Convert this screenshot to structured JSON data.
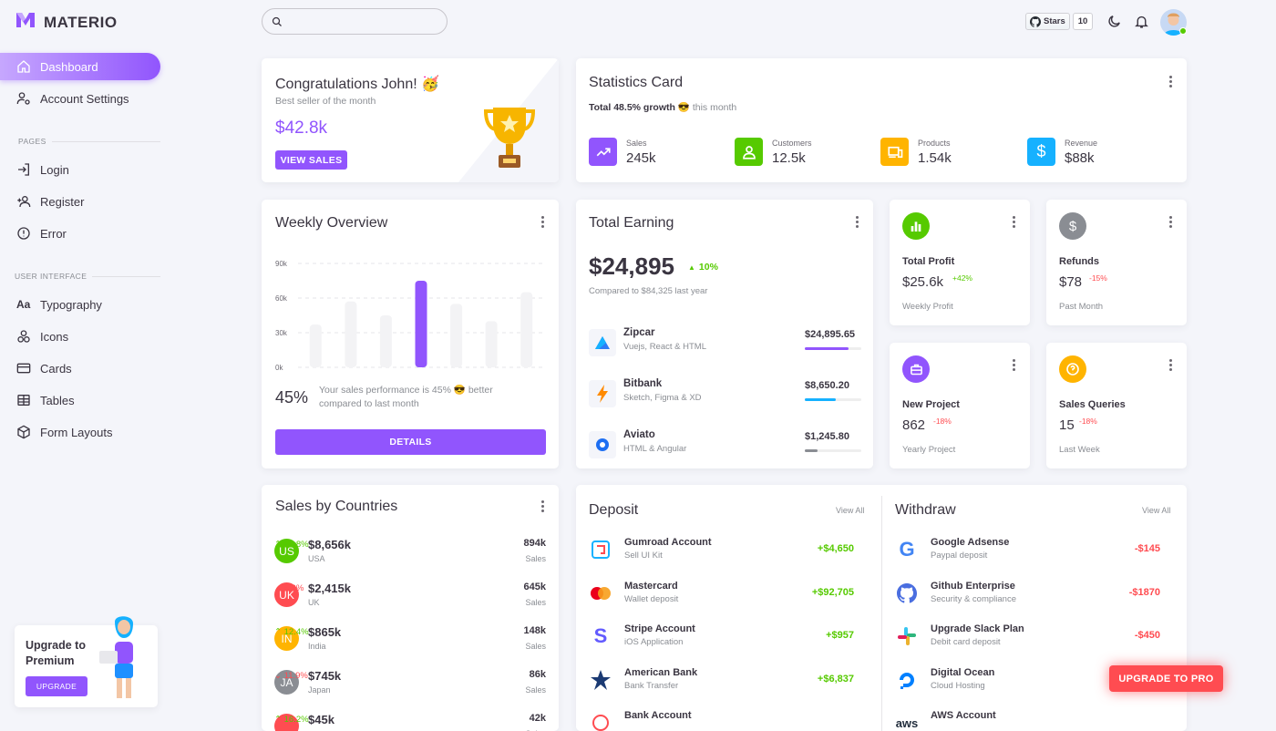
{
  "brand": {
    "name": "MATERIO"
  },
  "nav": {
    "dashboard": "Dashboard",
    "account_settings": "Account Settings",
    "pages_header": "PAGES",
    "login": "Login",
    "register": "Register",
    "error": "Error",
    "ui_header": "USER INTERFACE",
    "typography": "Typography",
    "icons": "Icons",
    "cards": "Cards",
    "tables": "Tables",
    "form_layouts": "Form Layouts"
  },
  "upgrade": {
    "title": "Upgrade to Premium",
    "button": "UPGRADE"
  },
  "topbar": {
    "search_placeholder": "",
    "stars_label": "Stars",
    "stars_count": "10"
  },
  "congrats": {
    "title": "Congratulations John! 🥳",
    "subtitle": "Best seller of the month",
    "amount": "$42.8k",
    "button": "VIEW SALES"
  },
  "stats": {
    "title": "Statistics Card",
    "growth_bold": "Total 48.5% growth",
    "growth_rest": "😎 this month",
    "items": [
      {
        "label": "Sales",
        "value": "245k",
        "color": "#9155fd",
        "icon": "trending-up-icon"
      },
      {
        "label": "Customers",
        "value": "12.5k",
        "color": "#56ca00",
        "icon": "user-icon"
      },
      {
        "label": "Products",
        "value": "1.54k",
        "color": "#ffb400",
        "icon": "devices-icon"
      },
      {
        "label": "Revenue",
        "value": "$88k",
        "color": "#16b1ff",
        "icon": "dollar-icon"
      }
    ]
  },
  "weekly": {
    "title": "Weekly Overview",
    "y_ticks": [
      "90k",
      "60k",
      "30k",
      "0k"
    ],
    "percent": "45%",
    "note": "Your sales performance is 45% 😎 better compared to last month",
    "button": "DETAILS",
    "chart_data": {
      "type": "bar",
      "values": [
        37,
        57,
        45,
        75,
        55,
        40,
        65
      ],
      "ylim": [
        0,
        90
      ],
      "highlight_index": 3
    }
  },
  "earning": {
    "title": "Total Earning",
    "amount": "$24,895",
    "change": "10%",
    "compare": "Compared to $84,325 last year",
    "items": [
      {
        "name": "Zipcar",
        "sub": "Vuejs, React & HTML",
        "amount": "$24,895.65",
        "progress": 0.78,
        "color": "#9155fd"
      },
      {
        "name": "Bitbank",
        "sub": "Sketch, Figma & XD",
        "amount": "$8,650.20",
        "progress": 0.55,
        "color": "#16b1ff"
      },
      {
        "name": "Aviato",
        "sub": "HTML & Angular",
        "amount": "$1,245.80",
        "progress": 0.22,
        "color": "#8a8d93"
      }
    ]
  },
  "mini": [
    {
      "title": "Total Profit",
      "value": "$25.6k",
      "change": "+42%",
      "sub": "Weekly Profit",
      "color": "#56ca00",
      "change_color": "#56ca00",
      "icon": "chart-bar-icon"
    },
    {
      "title": "Refunds",
      "value": "$78",
      "change": "-15%",
      "sub": "Past Month",
      "color": "#8a8d93",
      "change_color": "#ff4c51",
      "icon": "currency-icon"
    },
    {
      "title": "New Project",
      "value": "862",
      "change": "-18%",
      "sub": "Yearly Project",
      "color": "#9155fd",
      "change_color": "#ff4c51",
      "icon": "briefcase-icon"
    },
    {
      "title": "Sales Queries",
      "value": "15",
      "change": "-18%",
      "sub": "Last Week",
      "color": "#ffb400",
      "change_color": "#ff4c51",
      "icon": "help-circle-icon"
    }
  ],
  "countries": {
    "title": "Sales by Countries",
    "sales_label": "Sales",
    "items": [
      {
        "code": "US",
        "amount": "$8,656k",
        "change": "25.8%",
        "dir": "up",
        "name": "USA",
        "sales": "894k",
        "color": "#56ca00"
      },
      {
        "code": "UK",
        "amount": "$2,415k",
        "change": "6.2%",
        "dir": "down",
        "name": "UK",
        "sales": "645k",
        "color": "#ff4c51"
      },
      {
        "code": "IN",
        "amount": "$865k",
        "change": "12.4%",
        "dir": "up",
        "name": "India",
        "sales": "148k",
        "color": "#ffb400"
      },
      {
        "code": "JA",
        "amount": "$745k",
        "change": "11.9%",
        "dir": "down",
        "name": "Japan",
        "sales": "86k",
        "color": "#8a8d93"
      },
      {
        "code": "",
        "amount": "$45k",
        "change": "16.2%",
        "dir": "up",
        "name": "",
        "sales": "42k",
        "color": "#ff4c51"
      }
    ]
  },
  "deposit": {
    "title": "Deposit",
    "view_all": "View All",
    "items": [
      {
        "name": "Gumroad Account",
        "sub": "Sell UI Kit",
        "amount": "+$4,650",
        "icon": "gumroad-icon"
      },
      {
        "name": "Mastercard",
        "sub": "Wallet deposit",
        "amount": "+$92,705",
        "icon": "mastercard-icon"
      },
      {
        "name": "Stripe Account",
        "sub": "iOS Application",
        "amount": "+$957",
        "icon": "stripe-icon"
      },
      {
        "name": "American Bank",
        "sub": "Bank Transfer",
        "amount": "+$6,837",
        "icon": "bank-icon"
      },
      {
        "name": "Bank Account",
        "sub": "",
        "amount": "",
        "icon": "bank-account-icon"
      }
    ]
  },
  "withdraw": {
    "title": "Withdraw",
    "view_all": "View All",
    "items": [
      {
        "name": "Google Adsense",
        "sub": "Paypal deposit",
        "amount": "-$145",
        "icon": "google-icon"
      },
      {
        "name": "Github Enterprise",
        "sub": "Security & compliance",
        "amount": "-$1870",
        "icon": "github-icon"
      },
      {
        "name": "Upgrade Slack Plan",
        "sub": "Debit card deposit",
        "amount": "-$450",
        "icon": "slack-icon"
      },
      {
        "name": "Digital Ocean",
        "sub": "Cloud Hosting",
        "amount": "",
        "icon": "digitalocean-icon"
      },
      {
        "name": "AWS Account",
        "sub": "",
        "amount": "",
        "icon": "aws-icon"
      }
    ]
  },
  "pro_button": "UPGRADE TO PRO"
}
